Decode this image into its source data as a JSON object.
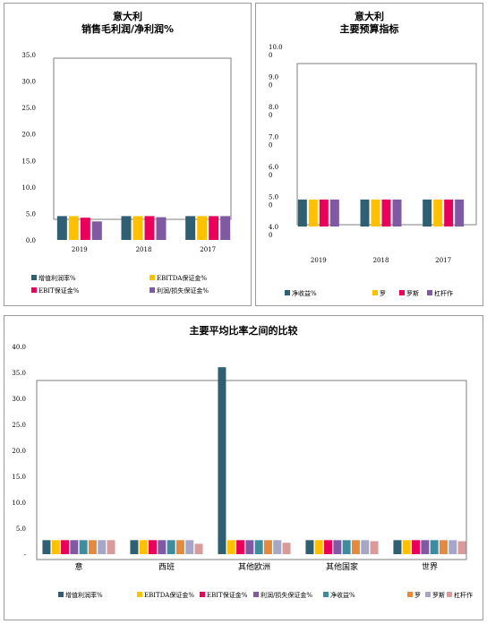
{
  "chart_data": [
    {
      "type": "bar",
      "title": [
        "意大利",
        "销售毛利润/净利润%"
      ],
      "categories": [
        "2019",
        "2018",
        "2017"
      ],
      "ylim": [
        0,
        35
      ],
      "yticks": [
        "0.0",
        "5.0",
        "10.0",
        "15.0",
        "20.0",
        "25.0",
        "30.0",
        "35.0"
      ],
      "legend_position": "bottom",
      "series": [
        {
          "name": "增值利润率%",
          "color": "#2e5f73",
          "values": [
            4.5,
            4.5,
            4.5
          ]
        },
        {
          "name": "EBITDA保证金%",
          "color": "#ffc000",
          "values": [
            4.5,
            4.5,
            4.5
          ]
        },
        {
          "name": "EBIT保证金%",
          "color": "#e8005a",
          "values": [
            4.2,
            4.5,
            4.5
          ]
        },
        {
          "name": "利润/损失保证金%",
          "color": "#7f5aa3",
          "values": [
            3.5,
            4.3,
            4.5
          ]
        }
      ]
    },
    {
      "type": "bar",
      "title": [
        "意大利",
        "主要预算指标"
      ],
      "categories": [
        "2019",
        "2018",
        "2017"
      ],
      "ylim": [
        4,
        10
      ],
      "yticks": [
        "4.0\n0",
        "5.0\n0",
        "6.0\n0",
        "7.0\n0",
        "8.0\n0",
        "9.0\n0",
        "10.0\n0"
      ],
      "legend_position": "bottom",
      "series": [
        {
          "name": "净收益%",
          "color": "#2e5f73",
          "values": [
            4.9,
            4.9,
            4.9
          ]
        },
        {
          "name": "罗",
          "color": "#ffc000",
          "values": [
            4.9,
            4.9,
            4.9
          ]
        },
        {
          "name": "罗斯",
          "color": "#e8005a",
          "values": [
            4.9,
            4.9,
            4.9
          ]
        },
        {
          "name": "杠杆作",
          "color": "#7f5aa3",
          "values": [
            4.9,
            4.9,
            4.9
          ]
        }
      ]
    },
    {
      "type": "bar",
      "title": [
        "主要平均比率之间的比较"
      ],
      "categories": [
        "意",
        "西班",
        "其他欧洲",
        "其他国家",
        "世界"
      ],
      "ylim": [
        0,
        40
      ],
      "yticks": [
        "-",
        "5.0",
        "10.0",
        "15.0",
        "20.0",
        "25.0",
        "30.0",
        "35.0",
        "40.0"
      ],
      "legend_position": "bottom",
      "series": [
        {
          "name": "增值利润率%",
          "color": "#2e5f73",
          "values": [
            2.7,
            2.7,
            36.0,
            2.7,
            2.7
          ]
        },
        {
          "name": "EBITDA保证金%",
          "color": "#ffc000",
          "values": [
            2.7,
            2.7,
            2.7,
            2.7,
            2.7
          ]
        },
        {
          "name": "EBIT保证金%",
          "color": "#e8005a",
          "values": [
            2.7,
            2.7,
            2.7,
            2.7,
            2.7
          ]
        },
        {
          "name": "利润/损失保证金%",
          "color": "#7f5aa3",
          "values": [
            2.7,
            2.7,
            2.7,
            2.7,
            2.7
          ]
        },
        {
          "name": "净收益%",
          "color": "#3c8e9e",
          "values": [
            2.7,
            2.7,
            2.7,
            2.7,
            2.7
          ]
        },
        {
          "name": "罗",
          "color": "#e38a3f",
          "values": [
            2.7,
            2.7,
            2.7,
            2.7,
            2.7
          ]
        },
        {
          "name": "罗斯",
          "color": "#a6a6c8",
          "values": [
            2.7,
            2.7,
            2.7,
            2.7,
            2.7
          ]
        },
        {
          "name": "杠杆作",
          "color": "#d99a9a",
          "values": [
            2.7,
            2.0,
            2.2,
            2.5,
            2.5
          ]
        }
      ]
    }
  ]
}
